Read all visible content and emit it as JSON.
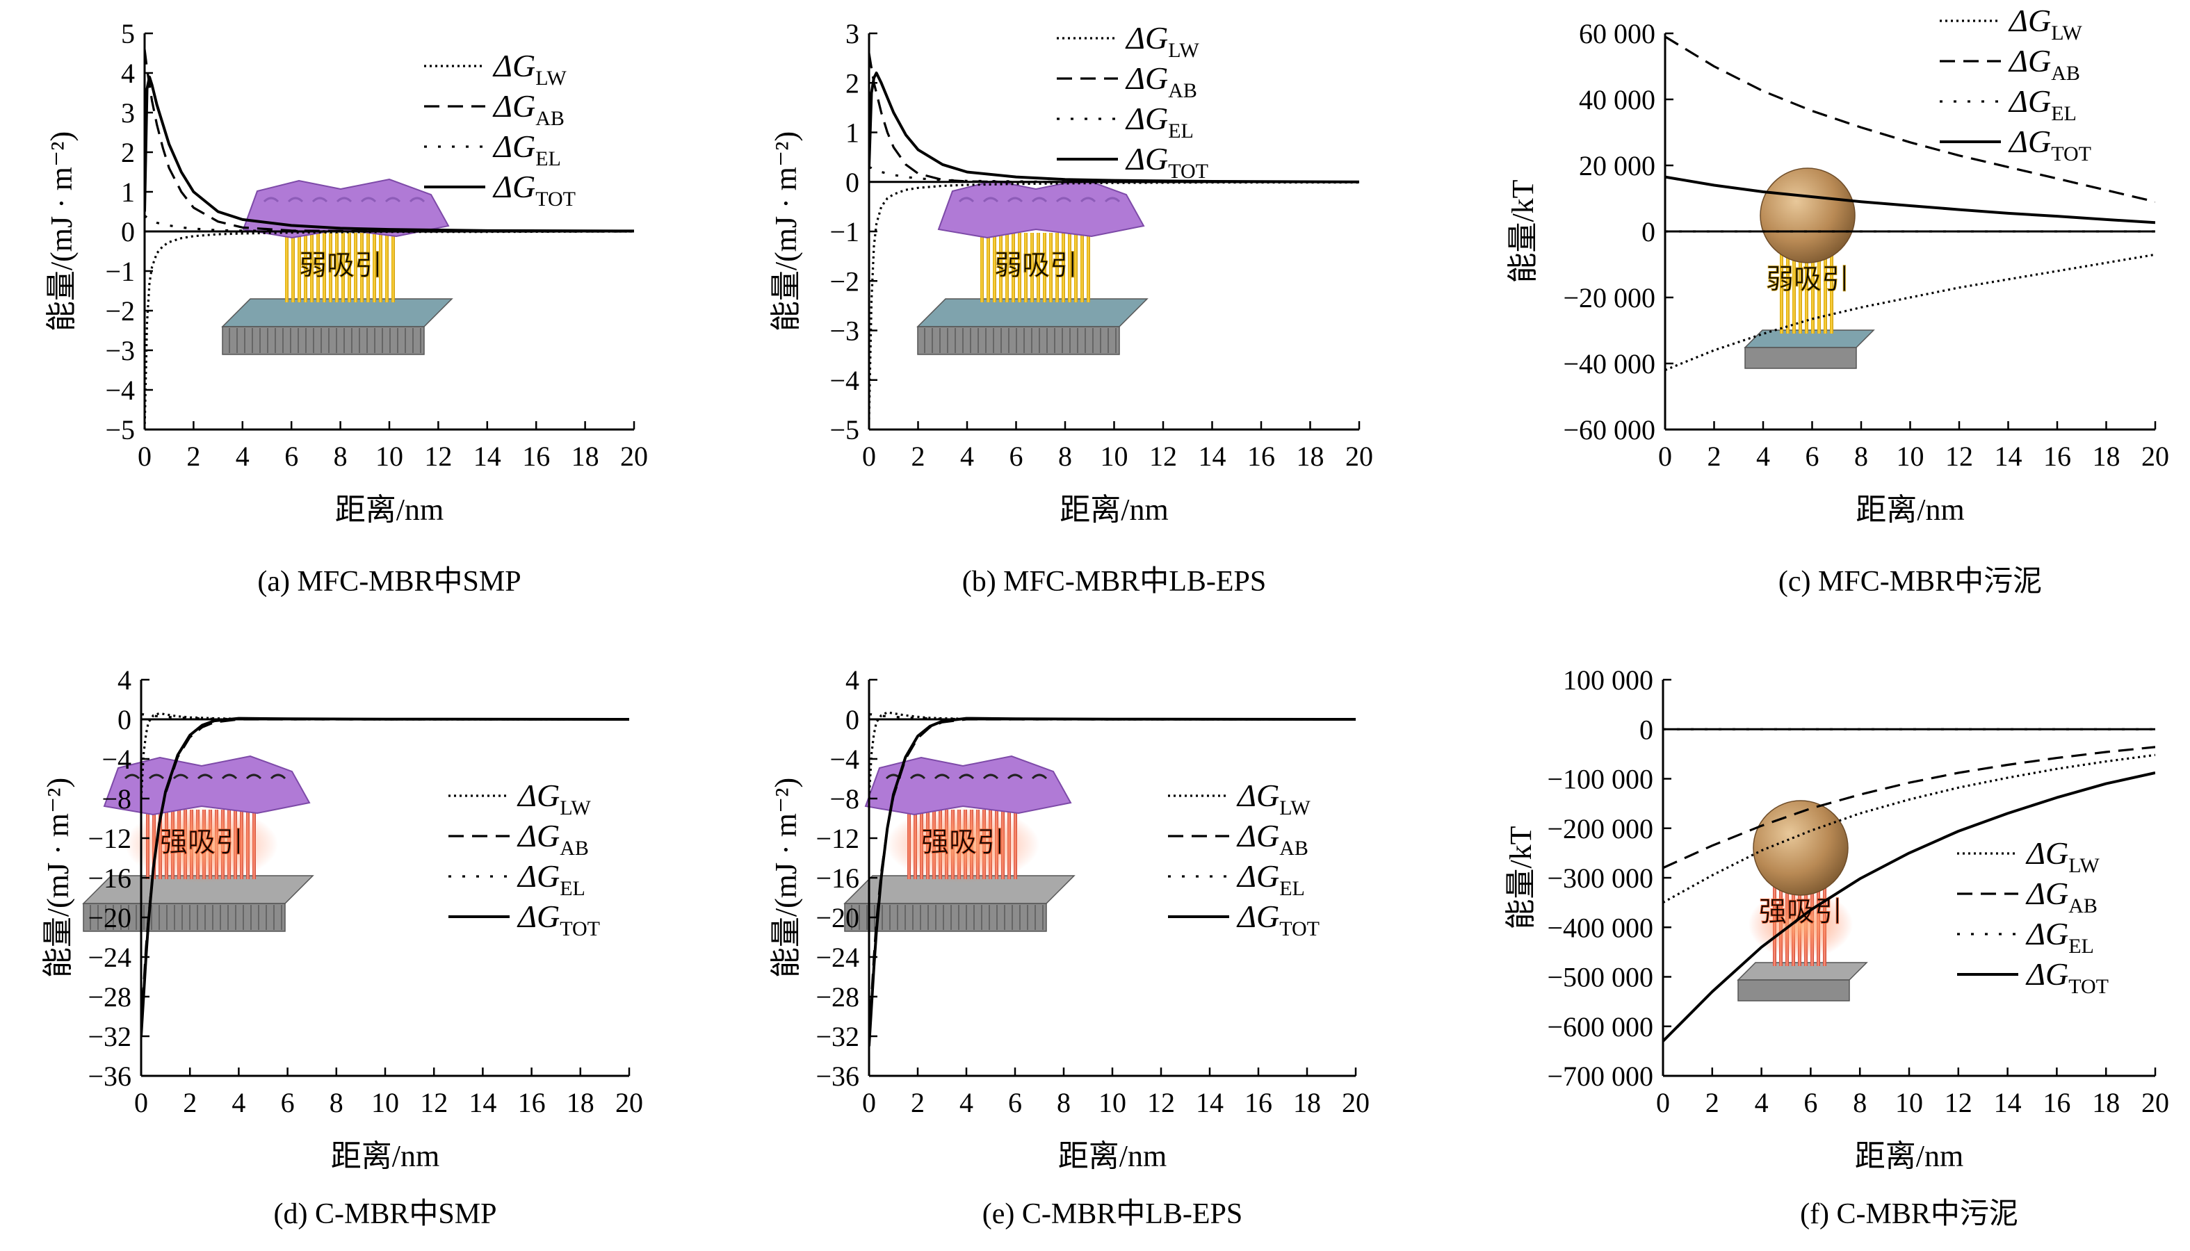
{
  "chart_data": [
    {
      "type": "line",
      "caption": "(a) MFC-MBR中SMP",
      "xlabel": "距离/nm",
      "ylabel": "能量/(mJ · m⁻²)",
      "xlim": [
        0,
        20
      ],
      "ylim": [
        -5,
        5
      ],
      "xticks": [
        0,
        2,
        4,
        6,
        8,
        10,
        12,
        14,
        16,
        18,
        20
      ],
      "yticks": [
        -5,
        -4,
        -3,
        -2,
        -1,
        0,
        1,
        2,
        3,
        4,
        5
      ],
      "legend_position": "top-right",
      "inset": "弱吸引",
      "x": [
        0,
        0.1,
        0.2,
        0.3,
        0.5,
        0.75,
        1,
        1.5,
        2,
        3,
        4,
        6,
        8,
        10,
        14,
        20
      ],
      "series": [
        {
          "name": "ΔG_LW",
          "style": "dotted",
          "values": [
            -5,
            -2.3,
            -1.3,
            -0.9,
            -0.55,
            -0.37,
            -0.27,
            -0.17,
            -0.12,
            -0.07,
            -0.05,
            -0.03,
            -0.02,
            -0.01,
            -0.01,
            0
          ]
        },
        {
          "name": "ΔG_AB",
          "style": "dashed",
          "values": [
            4.6,
            4.1,
            3.7,
            3.3,
            2.7,
            2.1,
            1.6,
            1.0,
            0.6,
            0.25,
            0.1,
            0.02,
            0.01,
            0,
            0,
            0
          ]
        },
        {
          "name": "ΔG_EL",
          "style": "dotted-sparse",
          "values": [
            0.4,
            0.35,
            0.3,
            0.27,
            0.22,
            0.18,
            0.15,
            0.1,
            0.07,
            0.03,
            0.02,
            0.01,
            0,
            0,
            0,
            0
          ]
        },
        {
          "name": "ΔG_TOT",
          "style": "solid",
          "values": [
            0.5,
            3.6,
            3.9,
            3.7,
            3.2,
            2.7,
            2.2,
            1.5,
            1.0,
            0.5,
            0.3,
            0.15,
            0.08,
            0.05,
            0.02,
            0.01
          ]
        }
      ]
    },
    {
      "type": "line",
      "caption": "(b) MFC-MBR中LB-EPS",
      "xlabel": "距离/nm",
      "ylabel": "能量/(mJ · m⁻²)",
      "xlim": [
        0,
        20
      ],
      "ylim": [
        -5,
        3
      ],
      "xticks": [
        0,
        2,
        4,
        6,
        8,
        10,
        12,
        14,
        16,
        18,
        20
      ],
      "yticks": [
        -5,
        -4,
        -3,
        -2,
        -1,
        0,
        1,
        2,
        3
      ],
      "legend_position": "top-right",
      "inset": "弱吸引",
      "x": [
        0,
        0.1,
        0.2,
        0.3,
        0.5,
        0.75,
        1,
        1.5,
        2,
        3,
        4,
        6,
        8,
        10,
        14,
        20
      ],
      "series": [
        {
          "name": "ΔG_LW",
          "style": "dotted",
          "values": [
            -4.8,
            -2.4,
            -1.3,
            -0.85,
            -0.5,
            -0.33,
            -0.25,
            -0.16,
            -0.12,
            -0.08,
            -0.06,
            -0.04,
            -0.03,
            -0.02,
            -0.01,
            -0.01
          ]
        },
        {
          "name": "ΔG_AB",
          "style": "dashed",
          "values": [
            2.6,
            2.3,
            2.0,
            1.8,
            1.4,
            1.0,
            0.7,
            0.35,
            0.17,
            0.04,
            0.01,
            0,
            0,
            0,
            0,
            0
          ]
        },
        {
          "name": "ΔG_EL",
          "style": "dotted-sparse",
          "values": [
            0.3,
            0.28,
            0.25,
            0.23,
            0.2,
            0.17,
            0.14,
            0.1,
            0.07,
            0.04,
            0.02,
            0.01,
            0,
            0,
            0,
            0
          ]
        },
        {
          "name": "ΔG_TOT",
          "style": "solid",
          "values": [
            0.3,
            1.8,
            2.1,
            2.2,
            2.0,
            1.7,
            1.4,
            0.95,
            0.65,
            0.35,
            0.2,
            0.1,
            0.05,
            0.03,
            0.01,
            0
          ]
        }
      ]
    },
    {
      "type": "line",
      "caption": "(c) MFC-MBR中污泥",
      "xlabel": "距离/nm",
      "ylabel": "能量/kT",
      "xlim": [
        0,
        20
      ],
      "ylim": [
        -60000,
        60000
      ],
      "xticks": [
        0,
        2,
        4,
        6,
        8,
        10,
        12,
        14,
        16,
        18,
        20
      ],
      "yticks": [
        -60000,
        -40000,
        -20000,
        0,
        20000,
        40000,
        60000
      ],
      "ytick_labels": [
        "−60 000",
        "−40 000",
        "−20 000",
        "0",
        "20 000",
        "40 000",
        "60 000"
      ],
      "legend_position": "top-right",
      "inset": "弱吸引",
      "x": [
        0,
        2,
        4,
        6,
        8,
        10,
        12,
        14,
        16,
        18,
        20
      ],
      "series": [
        {
          "name": "ΔG_LW",
          "style": "dotted",
          "values": [
            -42000,
            -36000,
            -31000,
            -26500,
            -23000,
            -20000,
            -17000,
            -14500,
            -12000,
            -9500,
            -7000
          ]
        },
        {
          "name": "ΔG_AB",
          "style": "dashed",
          "values": [
            59000,
            50000,
            42500,
            36500,
            31500,
            27000,
            23000,
            19500,
            16000,
            12500,
            9000
          ]
        },
        {
          "name": "ΔG_EL",
          "style": "dotted-sparse",
          "values": [
            0,
            0,
            0,
            0,
            0,
            0,
            0,
            0,
            0,
            0,
            0
          ]
        },
        {
          "name": "ΔG_TOT",
          "style": "solid",
          "values": [
            16500,
            14000,
            12000,
            10500,
            9000,
            7800,
            6600,
            5500,
            4600,
            3600,
            2700
          ]
        }
      ]
    },
    {
      "type": "line",
      "caption": "(d) C-MBR中SMP",
      "xlabel": "距离/nm",
      "ylabel": "能量/(mJ · m⁻²)",
      "xlim": [
        0,
        20
      ],
      "ylim": [
        -36,
        4
      ],
      "xticks": [
        0,
        2,
        4,
        6,
        8,
        10,
        12,
        14,
        16,
        18,
        20
      ],
      "yticks": [
        -36,
        -32,
        -28,
        -24,
        -20,
        -16,
        -12,
        -8,
        -4,
        0,
        4
      ],
      "legend_position": "right",
      "inset": "强吸引",
      "x": [
        0,
        0.1,
        0.2,
        0.3,
        0.5,
        0.75,
        1,
        1.5,
        2,
        2.5,
        3,
        4,
        6,
        10,
        20
      ],
      "series": [
        {
          "name": "ΔG_LW",
          "style": "dotted",
          "values": [
            -8,
            -3.5,
            -1.5,
            -0.3,
            0.4,
            0.6,
            0.5,
            0.3,
            0.2,
            0.15,
            0.1,
            0.05,
            0.02,
            0,
            0
          ]
        },
        {
          "name": "ΔG_AB",
          "style": "dashed",
          "values": [
            -31,
            -27,
            -23,
            -20,
            -15,
            -10.5,
            -7.5,
            -3.8,
            -1.8,
            -0.8,
            -0.3,
            0,
            0,
            0,
            0
          ]
        },
        {
          "name": "ΔG_EL",
          "style": "dotted-sparse",
          "values": [
            0.5,
            0.5,
            0.45,
            0.4,
            0.35,
            0.3,
            0.25,
            0.18,
            0.12,
            0.08,
            0.05,
            0.02,
            0,
            0,
            0
          ]
        },
        {
          "name": "ΔG_TOT",
          "style": "solid",
          "values": [
            -32,
            -28,
            -24,
            -20.5,
            -15,
            -10.5,
            -7.3,
            -3.6,
            -1.6,
            -0.6,
            -0.15,
            0.1,
            0.05,
            0.02,
            0
          ]
        }
      ]
    },
    {
      "type": "line",
      "caption": "(e) C-MBR中LB-EPS",
      "xlabel": "距离/nm",
      "ylabel": "能量/(mJ · m⁻²)",
      "xlim": [
        0,
        20
      ],
      "ylim": [
        -36,
        4
      ],
      "xticks": [
        0,
        2,
        4,
        6,
        8,
        10,
        12,
        14,
        16,
        18,
        20
      ],
      "yticks": [
        -36,
        -32,
        -28,
        -24,
        -20,
        -16,
        -12,
        -8,
        -4,
        0,
        4
      ],
      "legend_position": "right",
      "inset": "强吸引",
      "x": [
        0,
        0.1,
        0.2,
        0.3,
        0.5,
        0.75,
        1,
        1.5,
        2,
        2.5,
        3,
        4,
        6,
        10,
        20
      ],
      "series": [
        {
          "name": "ΔG_LW",
          "style": "dotted",
          "values": [
            -8,
            -3.5,
            -1.5,
            -0.3,
            0.4,
            0.7,
            0.6,
            0.4,
            0.25,
            0.15,
            0.1,
            0.05,
            0.02,
            0,
            0
          ]
        },
        {
          "name": "ΔG_AB",
          "style": "dashed",
          "values": [
            -32,
            -28,
            -24,
            -20.5,
            -15.5,
            -11,
            -7.8,
            -4,
            -1.9,
            -0.8,
            -0.3,
            0,
            0,
            0,
            0
          ]
        },
        {
          "name": "ΔG_EL",
          "style": "dotted-sparse",
          "values": [
            0.5,
            0.5,
            0.45,
            0.4,
            0.35,
            0.3,
            0.25,
            0.18,
            0.12,
            0.08,
            0.05,
            0.02,
            0,
            0,
            0
          ]
        },
        {
          "name": "ΔG_TOT",
          "style": "solid",
          "values": [
            -33,
            -29,
            -25,
            -21.5,
            -16,
            -11,
            -7.6,
            -3.8,
            -1.7,
            -0.7,
            -0.2,
            0.1,
            0.05,
            0.02,
            0
          ]
        }
      ]
    },
    {
      "type": "line",
      "caption": "(f) C-MBR中污泥",
      "xlabel": "距离/nm",
      "ylabel": "能量/kT",
      "xlim": [
        0,
        20
      ],
      "ylim": [
        -700000,
        100000
      ],
      "xticks": [
        0,
        2,
        4,
        6,
        8,
        10,
        12,
        14,
        16,
        18,
        20
      ],
      "yticks": [
        -700000,
        -600000,
        -500000,
        -400000,
        -300000,
        -200000,
        -100000,
        0,
        100000
      ],
      "ytick_labels": [
        "−700 000",
        "−600 000",
        "−500 000",
        "−400 000",
        "−300 000",
        "−200 000",
        "−100 000",
        "0",
        "100 000"
      ],
      "legend_position": "right",
      "inset": "强吸引",
      "x": [
        0,
        2,
        4,
        6,
        8,
        10,
        12,
        14,
        16,
        18,
        20
      ],
      "series": [
        {
          "name": "ΔG_LW",
          "style": "dotted",
          "values": [
            -350000,
            -295000,
            -245000,
            -205000,
            -170000,
            -142000,
            -118000,
            -98000,
            -80000,
            -65000,
            -52000
          ]
        },
        {
          "name": "ΔG_AB",
          "style": "dashed",
          "values": [
            -280000,
            -235000,
            -195000,
            -160000,
            -132000,
            -108000,
            -88000,
            -72000,
            -58000,
            -46000,
            -36000
          ]
        },
        {
          "name": "ΔG_EL",
          "style": "dotted-sparse",
          "values": [
            0,
            0,
            0,
            0,
            0,
            0,
            0,
            0,
            0,
            0,
            0
          ]
        },
        {
          "name": "ΔG_TOT",
          "style": "solid",
          "values": [
            -630000,
            -530000,
            -440000,
            -365000,
            -302000,
            -250000,
            -206000,
            -170000,
            -138000,
            -110000,
            -88000
          ]
        }
      ]
    }
  ]
}
